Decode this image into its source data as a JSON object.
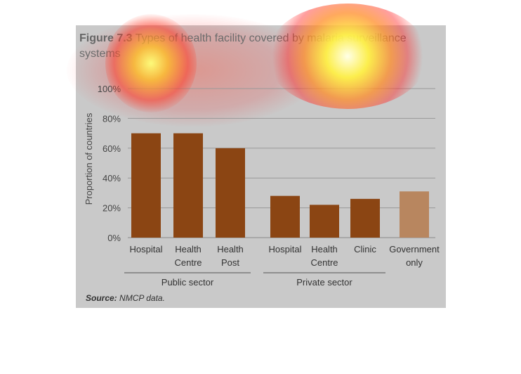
{
  "figure": {
    "label": "Figure 7.3",
    "title_text": "Types of health facility covered by malaria surveillance systems",
    "source_label": "Source:",
    "source_text": "NMCP data."
  },
  "chart_data": {
    "type": "bar",
    "categories": [
      "Hospital",
      "Health Centre",
      "Health Post",
      "Hospital",
      "Health Centre",
      "Clinic",
      "Government only"
    ],
    "category_lines": [
      [
        "Hospital"
      ],
      [
        "Health",
        "Centre"
      ],
      [
        "Health",
        "Post"
      ],
      [
        "Hospital"
      ],
      [
        "Health",
        "Centre"
      ],
      [
        "Clinic"
      ],
      [
        "Government",
        "only"
      ]
    ],
    "values": [
      70,
      70,
      60,
      28,
      22,
      26,
      31
    ],
    "groups": [
      {
        "name": "Public sector",
        "indices": [
          0,
          1,
          2
        ]
      },
      {
        "name": "Private sector",
        "indices": [
          3,
          4,
          5
        ]
      }
    ],
    "bar_colors": [
      "#8b4513",
      "#8b4513",
      "#8b4513",
      "#8b4513",
      "#8b4513",
      "#8b4513",
      "#b8865f"
    ],
    "ylabel": "Proportion of countries",
    "yticks": [
      "0%",
      "20%",
      "40%",
      "60%",
      "80%",
      "100%"
    ],
    "ylim": [
      0,
      100
    ],
    "grid": true
  }
}
